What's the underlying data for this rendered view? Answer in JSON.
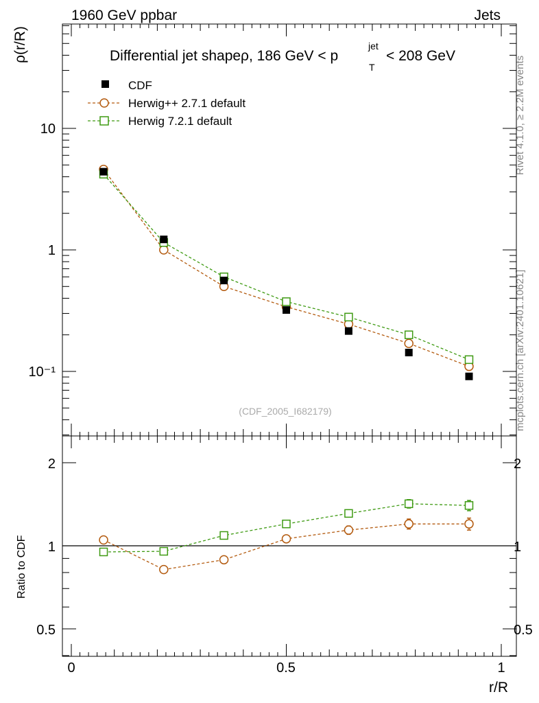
{
  "header": {
    "left": "1960 GeV ppbar",
    "right": "Jets"
  },
  "side": {
    "rivet": "Rivet 4.1.0, ≥ 2.2M events",
    "mcplots": "mcplots.cern.ch [arXiv:2401.10621]"
  },
  "main": {
    "title_prefix": "Differential jet shapeρ, 186 GeV < p",
    "title_sup": "jet",
    "title_sub": "T",
    "title_suffix": "< 208 GeV",
    "ylabel": "ρ(r/R)",
    "watermark": "(CDF_2005_I682179)"
  },
  "ratio": {
    "ylabel": "Ratio to CDF"
  },
  "xaxis": {
    "label": "r/R"
  },
  "colors": {
    "data": "#000000",
    "herwigpp": "#b35a0e",
    "herwig7": "#3e9a12"
  },
  "chart_data": [
    {
      "type": "scatter",
      "panel": "main",
      "title": "Differential jet shapeρ, 186 GeV < p_T^jet < 208 GeV",
      "xlabel": "r/R",
      "ylabel": "ρ(r/R)",
      "yscale": "log",
      "xlim": [
        0,
        1
      ],
      "ylim": [
        0.03,
        60
      ],
      "x_ticks": [
        "0",
        "0.5",
        "1"
      ],
      "y_ticks": [
        {
          "value": 10,
          "label": "10"
        },
        {
          "value": 1,
          "label": "1"
        },
        {
          "value": 0.1,
          "label": "10⁻¹"
        }
      ],
      "legend_position": "top-left",
      "x": [
        0.075,
        0.215,
        0.355,
        0.5,
        0.645,
        0.785,
        0.925
      ],
      "series": [
        {
          "name": "CDF",
          "marker": "filled-square",
          "line": "none",
          "values": [
            4.4,
            1.22,
            0.56,
            0.32,
            0.215,
            0.143,
            0.091
          ]
        },
        {
          "name": "Herwig++ 2.7.1 default",
          "marker": "open-circle",
          "line": "dashed",
          "values": [
            4.6,
            1.0,
            0.5,
            0.34,
            0.245,
            0.17,
            0.11
          ]
        },
        {
          "name": "Herwig 7.2.1 default",
          "marker": "open-square",
          "line": "dashed",
          "values": [
            4.2,
            1.15,
            0.6,
            0.375,
            0.28,
            0.2,
            0.125
          ]
        }
      ]
    },
    {
      "type": "scatter",
      "panel": "ratio",
      "ylabel": "Ratio to CDF",
      "xlabel": "r/R",
      "yscale": "log",
      "xlim": [
        0,
        1
      ],
      "ylim": [
        0.4,
        2.5
      ],
      "y_ticks": [
        {
          "value": 2,
          "label": "2"
        },
        {
          "value": 1,
          "label": "1"
        },
        {
          "value": 0.5,
          "label": "0.5"
        }
      ],
      "x": [
        0.075,
        0.215,
        0.355,
        0.5,
        0.645,
        0.785,
        0.925
      ],
      "series": [
        {
          "name": "Herwig++ 2.7.1 default",
          "marker": "open-circle",
          "line": "dashed",
          "values": [
            1.05,
            0.82,
            0.89,
            1.06,
            1.14,
            1.2,
            1.2
          ],
          "errors": [
            0.015,
            0.015,
            0.02,
            0.03,
            0.04,
            0.05,
            0.06
          ]
        },
        {
          "name": "Herwig 7.2.1 default",
          "marker": "open-square",
          "line": "dashed",
          "values": [
            0.95,
            0.955,
            1.09,
            1.2,
            1.31,
            1.42,
            1.4
          ],
          "errors": [
            0.012,
            0.015,
            0.02,
            0.03,
            0.04,
            0.05,
            0.06
          ]
        }
      ]
    }
  ]
}
